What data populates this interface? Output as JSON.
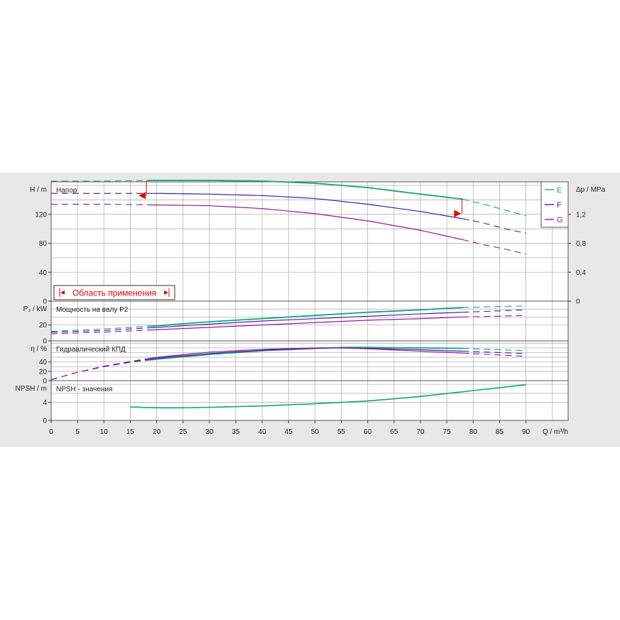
{
  "colors": {
    "E": "#14a37f",
    "F": "#3e1ea8",
    "G": "#9a1a8e",
    "grid": "#b4b4b4",
    "range": "#e00000"
  },
  "legend": [
    {
      "key": "E",
      "label": "E"
    },
    {
      "key": "F",
      "label": "F"
    },
    {
      "key": "G",
      "label": "G"
    }
  ],
  "range_label": "Область применения",
  "x_axis": {
    "label": "Q / m³/h",
    "ticks": [
      0,
      5,
      10,
      15,
      20,
      25,
      30,
      35,
      40,
      45,
      50,
      55,
      60,
      65,
      70,
      75,
      80,
      85,
      90
    ],
    "min": 0,
    "max": 98
  },
  "chart_data": [
    {
      "type": "line",
      "panel": "head",
      "title": "Напор",
      "ylabel": "H / m",
      "ylim": [
        0,
        165
      ],
      "yticks": [
        0,
        40,
        80,
        120
      ],
      "ytick_labels": [
        "0",
        "40",
        "80",
        "120"
      ],
      "y2label": "Δp / MPa",
      "y2ticks": [
        0,
        0.4,
        0.8,
        1.2
      ],
      "y2tick_labels": [
        "0",
        "0,4",
        "0,8",
        "1,2"
      ],
      "operating_range": [
        18.2,
        78
      ],
      "series": [
        {
          "name": "E",
          "x": [
            0,
            10,
            20,
            30,
            40,
            50,
            60,
            70,
            78,
            82,
            86,
            90
          ],
          "y": [
            166,
            166,
            167,
            167,
            166,
            163,
            157,
            148,
            141,
            134,
            126,
            118
          ]
        },
        {
          "name": "F",
          "x": [
            0,
            10,
            20,
            30,
            40,
            50,
            60,
            70,
            78,
            82,
            86,
            90
          ],
          "y": [
            149,
            149,
            149,
            148,
            146,
            142,
            134,
            124,
            114,
            108,
            100,
            94
          ]
        },
        {
          "name": "G",
          "x": [
            0,
            10,
            20,
            30,
            40,
            50,
            60,
            70,
            78,
            82,
            86,
            90
          ],
          "y": [
            134,
            134,
            133,
            132,
            128,
            121,
            111,
            98,
            85,
            78,
            72,
            65
          ]
        }
      ]
    },
    {
      "type": "line",
      "panel": "power",
      "title": "Мощность на валу P2",
      "ylabel": "P₂ / kW",
      "ylim": [
        0,
        50
      ],
      "yticks": [
        0,
        20
      ],
      "ytick_labels": [
        "0",
        "20"
      ],
      "series": [
        {
          "name": "E",
          "x": [
            0,
            10,
            20,
            30,
            40,
            50,
            60,
            70,
            78,
            90
          ],
          "y": [
            12,
            15,
            19,
            24,
            28,
            32,
            36,
            39,
            42,
            44
          ]
        },
        {
          "name": "F",
          "x": [
            0,
            10,
            20,
            30,
            40,
            50,
            60,
            70,
            78,
            90
          ],
          "y": [
            11,
            13,
            17,
            21,
            25,
            28,
            31,
            34,
            36,
            39
          ]
        },
        {
          "name": "G",
          "x": [
            0,
            10,
            20,
            30,
            40,
            50,
            60,
            70,
            78,
            90
          ],
          "y": [
            9,
            11,
            14,
            17,
            20,
            23,
            26,
            28,
            30,
            32
          ]
        }
      ]
    },
    {
      "type": "line",
      "panel": "efficiency",
      "title": "Гидравлический КПД",
      "ylabel": "η / %",
      "ylim": [
        0,
        85
      ],
      "yticks": [
        0,
        20,
        40
      ],
      "ytick_labels": [
        "0",
        "20",
        "40"
      ],
      "series": [
        {
          "name": "E",
          "x": [
            0,
            5,
            10,
            15,
            20,
            30,
            40,
            50,
            55,
            60,
            70,
            78,
            90
          ],
          "y": [
            2,
            18,
            30,
            39,
            46,
            56,
            64,
            69,
            71,
            71,
            70,
            69,
            64
          ]
        },
        {
          "name": "F",
          "x": [
            0,
            5,
            10,
            15,
            20,
            30,
            40,
            50,
            55,
            60,
            70,
            78,
            90
          ],
          "y": [
            2,
            18,
            30,
            40,
            48,
            58,
            65,
            69,
            70,
            69,
            66,
            63,
            58
          ]
        },
        {
          "name": "G",
          "x": [
            0,
            5,
            10,
            15,
            20,
            30,
            40,
            50,
            55,
            60,
            70,
            78,
            90
          ],
          "y": [
            2,
            18,
            31,
            41,
            50,
            61,
            67,
            70,
            70,
            68,
            63,
            59,
            52
          ]
        }
      ]
    },
    {
      "type": "line",
      "panel": "npsh",
      "title": "NPSH - значения",
      "ylabel": "NPSH / m",
      "ylim": [
        0,
        8.8
      ],
      "yticks": [
        0,
        4
      ],
      "ytick_labels": [
        "0",
        "4"
      ],
      "series": [
        {
          "name": "E",
          "x": [
            15,
            20,
            25,
            30,
            40,
            50,
            60,
            70,
            80,
            90
          ],
          "y": [
            3.0,
            2.8,
            2.8,
            2.9,
            3.2,
            3.7,
            4.3,
            5.3,
            6.6,
            7.9
          ]
        }
      ]
    }
  ]
}
